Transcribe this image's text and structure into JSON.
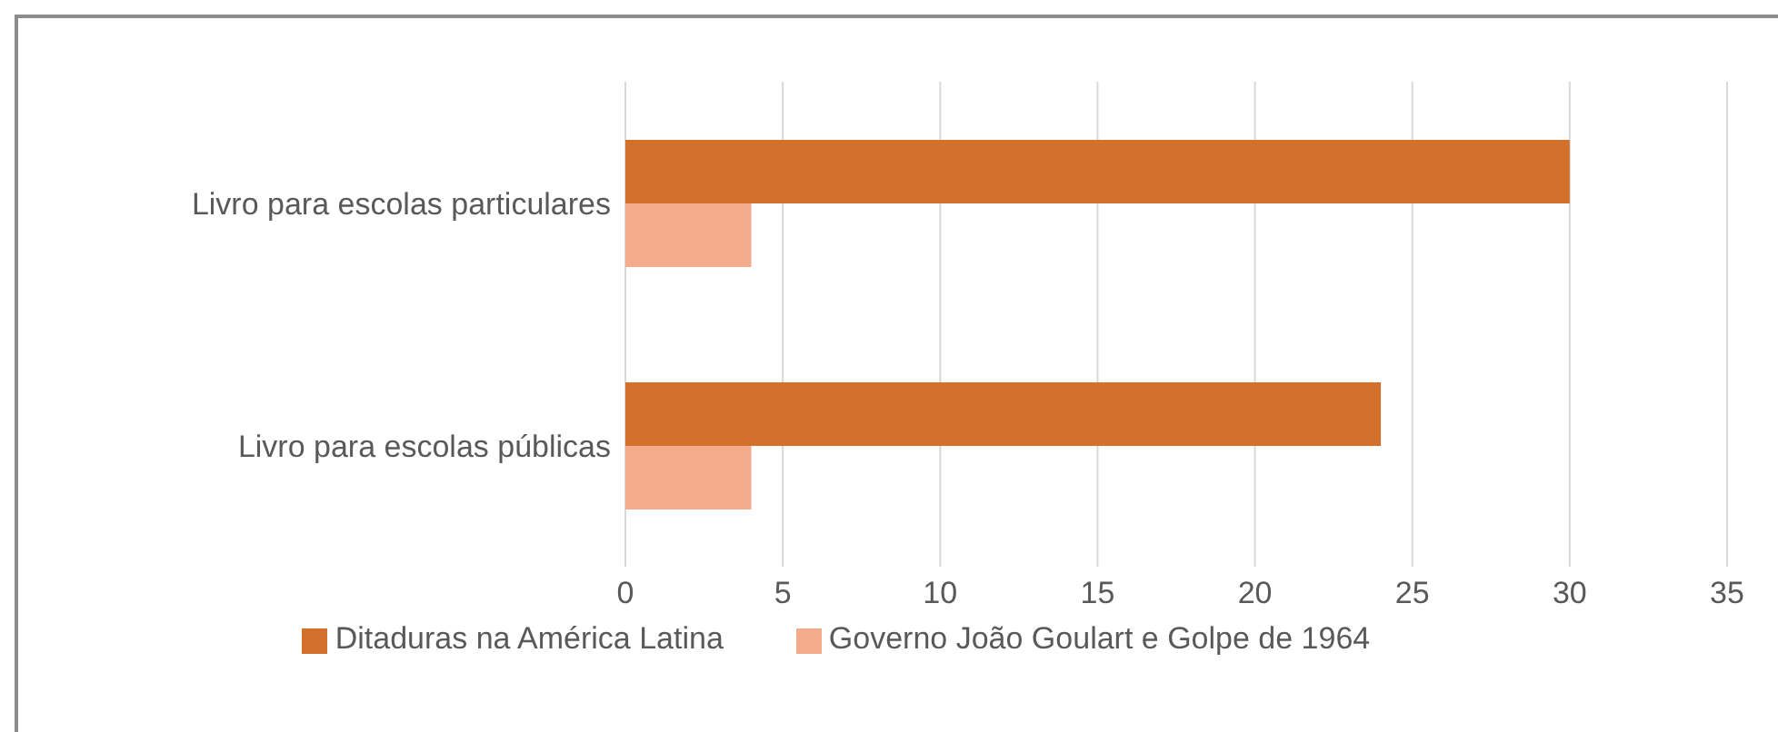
{
  "chart_data": {
    "type": "bar",
    "orientation": "horizontal",
    "categories": [
      "Livro para escolas particulares",
      "Livro para escolas públicas"
    ],
    "series": [
      {
        "name": "Ditaduras na América Latina",
        "color": "#d2702c",
        "values": [
          30,
          24
        ]
      },
      {
        "name": "Governo João Goulart e Golpe de 1964",
        "color": "#f4ab8c",
        "values": [
          4,
          4
        ]
      }
    ],
    "xlim": [
      0,
      35
    ],
    "xticks": [
      0,
      5,
      10,
      15,
      20,
      25,
      30,
      35
    ],
    "grid": "x",
    "legend": "bottom"
  }
}
